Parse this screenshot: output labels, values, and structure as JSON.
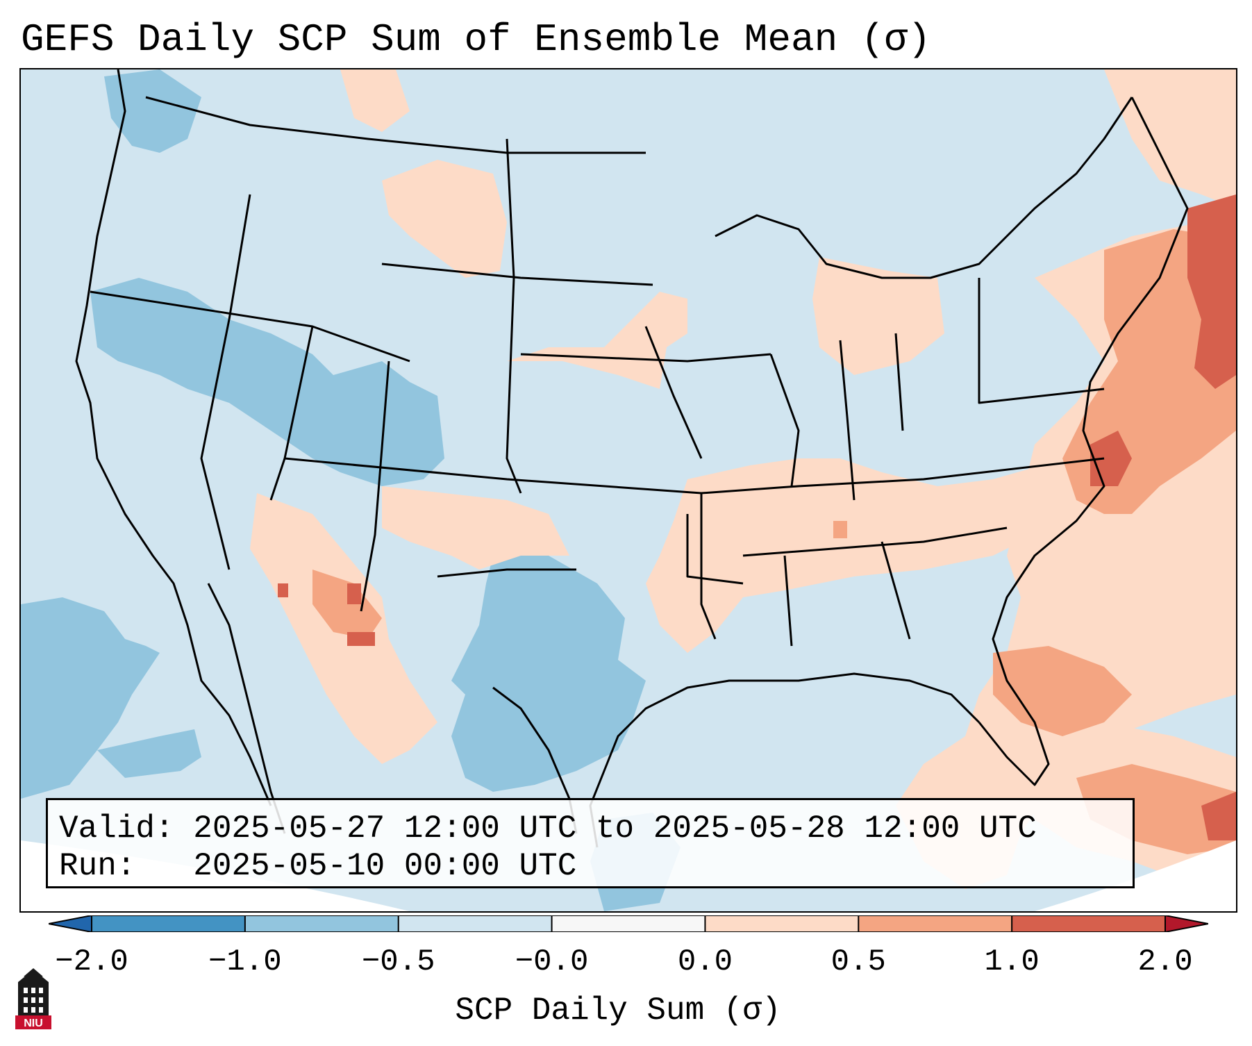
{
  "title": "GEFS Daily SCP Sum of Ensemble Mean (σ)",
  "info_box": {
    "valid_line": "Valid: 2025-05-27 12:00 UTC to 2025-05-28 12:00 UTC",
    "run_line": "Run:   2025-05-10 00:00 UTC"
  },
  "colorbar": {
    "label": "SCP Daily Sum (σ)",
    "ticks": [
      "−2.0",
      "−1.0",
      "−0.5",
      "−0.0",
      "0.0",
      "0.5",
      "1.0",
      "2.0"
    ],
    "bins": [
      {
        "from": "−2.0",
        "to": "−1.0",
        "color": "#4393c3"
      },
      {
        "from": "−1.0",
        "to": "−0.5",
        "color": "#92c5de"
      },
      {
        "from": "−0.5",
        "to": "−0.0",
        "color": "#d1e5f0"
      },
      {
        "from": "−0.0",
        "to": "0.0",
        "color": "#f7f7f7"
      },
      {
        "from": "0.0",
        "to": "0.5",
        "color": "#fddbc7"
      },
      {
        "from": "0.5",
        "to": "1.0",
        "color": "#f4a582"
      },
      {
        "from": "1.0",
        "to": "2.0",
        "color": "#d6604d"
      }
    ],
    "under_color": "#2166ac",
    "over_color": "#b2182b"
  },
  "logo": {
    "text": "NIU",
    "icon": "niu-tower-logo-icon"
  },
  "map": {
    "projection": "Lambert conformal, CONUS",
    "background_value_color": "#d1e5f0",
    "regions": [
      {
        "name": "Atlantic / Eastern Seaboard",
        "category": "1.0 to 2.0 and 0.5 to 1.0"
      },
      {
        "name": "Eastern Gulf / Florida / Caribbean",
        "category": "0.0 to 1.0"
      },
      {
        "name": "Texas",
        "category": "−1.0 to −0.5"
      },
      {
        "name": "Great Basin / Colorado",
        "category": "−1.0 to −0.5"
      },
      {
        "name": "Southern Plains / Mid-South",
        "category": "0.0 to 0.5"
      },
      {
        "name": "Southern Arizona / New Mexico",
        "category": "0.5 to 2.0"
      }
    ]
  }
}
